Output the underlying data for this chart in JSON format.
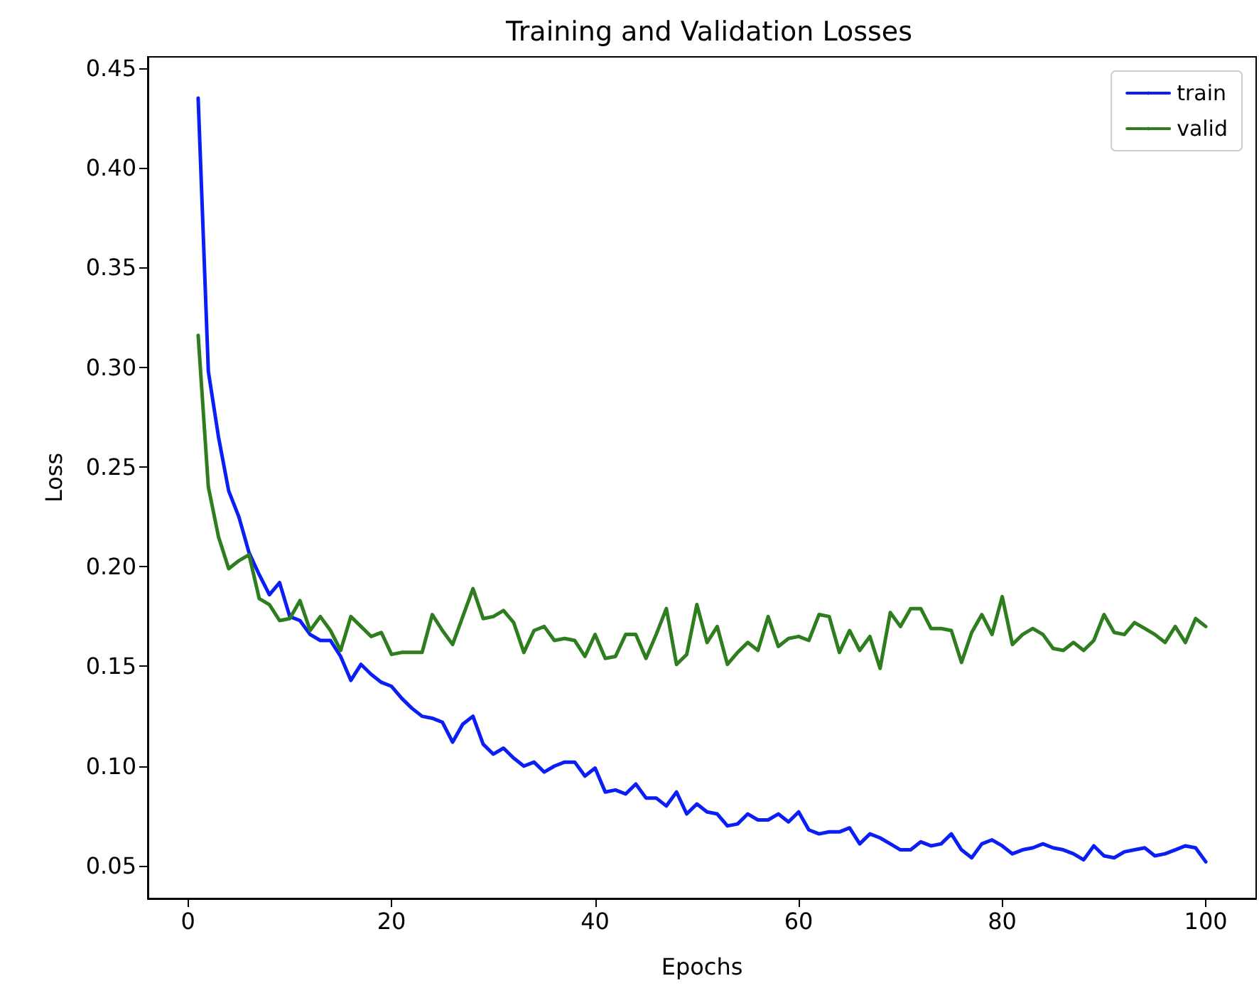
{
  "chart_data": {
    "type": "line",
    "title": "Training and Validation Losses",
    "xlabel": "Epochs",
    "ylabel": "Loss",
    "x": [
      1,
      2,
      3,
      4,
      5,
      6,
      7,
      8,
      9,
      10,
      11,
      12,
      13,
      14,
      15,
      16,
      17,
      18,
      19,
      20,
      21,
      22,
      23,
      24,
      25,
      26,
      27,
      28,
      29,
      30,
      31,
      32,
      33,
      34,
      35,
      36,
      37,
      38,
      39,
      40,
      41,
      42,
      43,
      44,
      45,
      46,
      47,
      48,
      49,
      50,
      51,
      52,
      53,
      54,
      55,
      56,
      57,
      58,
      59,
      60,
      61,
      62,
      63,
      64,
      65,
      66,
      67,
      68,
      69,
      70,
      71,
      72,
      73,
      74,
      75,
      76,
      77,
      78,
      79,
      80,
      81,
      82,
      83,
      84,
      85,
      86,
      87,
      88,
      89,
      90,
      91,
      92,
      93,
      94,
      95,
      96,
      97,
      98,
      99,
      100
    ],
    "series": [
      {
        "name": "train",
        "color": "#0a1ef5",
        "values": [
          0.435,
          0.298,
          0.265,
          0.238,
          0.225,
          0.207,
          0.196,
          0.186,
          0.192,
          0.175,
          0.173,
          0.166,
          0.163,
          0.163,
          0.155,
          0.143,
          0.151,
          0.146,
          0.142,
          0.14,
          0.134,
          0.129,
          0.125,
          0.124,
          0.122,
          0.112,
          0.121,
          0.125,
          0.111,
          0.106,
          0.109,
          0.104,
          0.1,
          0.102,
          0.097,
          0.1,
          0.102,
          0.102,
          0.095,
          0.099,
          0.087,
          0.088,
          0.086,
          0.091,
          0.084,
          0.084,
          0.08,
          0.087,
          0.076,
          0.081,
          0.077,
          0.076,
          0.07,
          0.071,
          0.076,
          0.073,
          0.073,
          0.076,
          0.072,
          0.077,
          0.068,
          0.066,
          0.067,
          0.067,
          0.069,
          0.061,
          0.066,
          0.064,
          0.061,
          0.058,
          0.058,
          0.062,
          0.06,
          0.061,
          0.066,
          0.058,
          0.054,
          0.061,
          0.063,
          0.06,
          0.056,
          0.058,
          0.059,
          0.061,
          0.059,
          0.058,
          0.056,
          0.053,
          0.06,
          0.055,
          0.054,
          0.057,
          0.058,
          0.059,
          0.055,
          0.056,
          0.058,
          0.06,
          0.059,
          0.052
        ]
      },
      {
        "name": "valid",
        "color": "#2e7d1e",
        "values": [
          0.316,
          0.24,
          0.215,
          0.199,
          0.203,
          0.206,
          0.184,
          0.181,
          0.173,
          0.174,
          0.183,
          0.168,
          0.175,
          0.168,
          0.158,
          0.175,
          0.17,
          0.165,
          0.167,
          0.156,
          0.157,
          0.157,
          0.157,
          0.176,
          0.168,
          0.161,
          0.175,
          0.189,
          0.174,
          0.175,
          0.178,
          0.172,
          0.157,
          0.168,
          0.17,
          0.163,
          0.164,
          0.163,
          0.155,
          0.166,
          0.154,
          0.155,
          0.166,
          0.166,
          0.154,
          0.166,
          0.179,
          0.151,
          0.156,
          0.181,
          0.162,
          0.17,
          0.151,
          0.157,
          0.162,
          0.158,
          0.175,
          0.16,
          0.164,
          0.165,
          0.163,
          0.176,
          0.175,
          0.157,
          0.168,
          0.158,
          0.165,
          0.149,
          0.177,
          0.17,
          0.179,
          0.179,
          0.169,
          0.169,
          0.168,
          0.152,
          0.167,
          0.176,
          0.166,
          0.185,
          0.161,
          0.166,
          0.169,
          0.166,
          0.159,
          0.158,
          0.162,
          0.158,
          0.163,
          0.176,
          0.167,
          0.166,
          0.172,
          0.169,
          0.166,
          0.162,
          0.17,
          0.162,
          0.174,
          0.17
        ]
      }
    ],
    "xlim": [
      -3.95,
      104.95
    ],
    "xticks": [
      0,
      20,
      40,
      60,
      80,
      100
    ],
    "ylim": [
      0.0336,
      0.4557
    ],
    "yticks": [
      {
        "value": 0.05,
        "label": "0.05"
      },
      {
        "value": 0.1,
        "label": "0.10"
      },
      {
        "value": 0.15,
        "label": "0.15"
      },
      {
        "value": 0.2,
        "label": "0.20"
      },
      {
        "value": 0.25,
        "label": "0.25"
      },
      {
        "value": 0.3,
        "label": "0.30"
      },
      {
        "value": 0.35,
        "label": "0.35"
      },
      {
        "value": 0.4,
        "label": "0.40"
      },
      {
        "value": 0.45,
        "label": "0.45"
      }
    ],
    "legend": "top right",
    "grid": false,
    "marker": "none",
    "line_style": "solid"
  }
}
